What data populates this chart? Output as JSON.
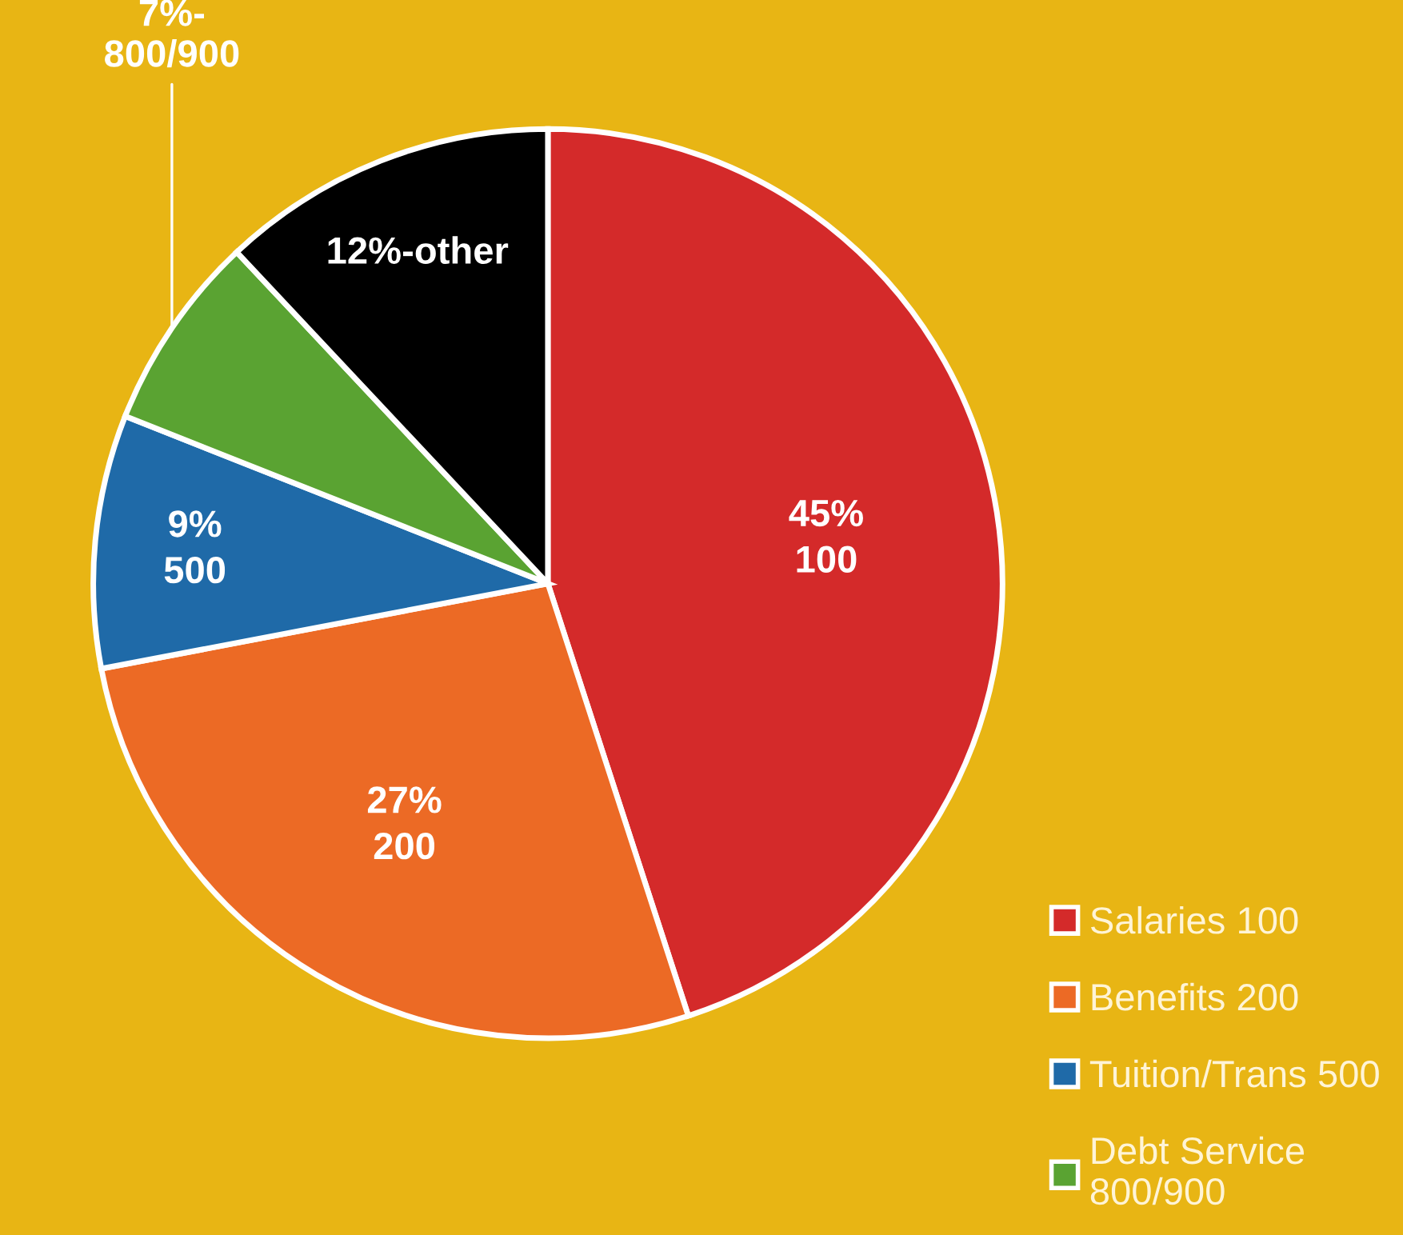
{
  "chart_data": {
    "type": "pie",
    "categories": [
      "Salaries 100",
      "Benefits 200",
      "Tuition/Trans 500",
      "Debt Service\n800/900",
      null
    ],
    "values": [
      45,
      27,
      9,
      7,
      12
    ],
    "colors": [
      "#d42a2a",
      "#ec6a25",
      "#1f6aa8",
      "#5aa332",
      "#000000"
    ],
    "value_labels": [
      "45%\n100",
      "27%\n200",
      "9%\n500",
      "7%-\n800/900",
      "12%-other"
    ],
    "legend": "bottom right"
  }
}
